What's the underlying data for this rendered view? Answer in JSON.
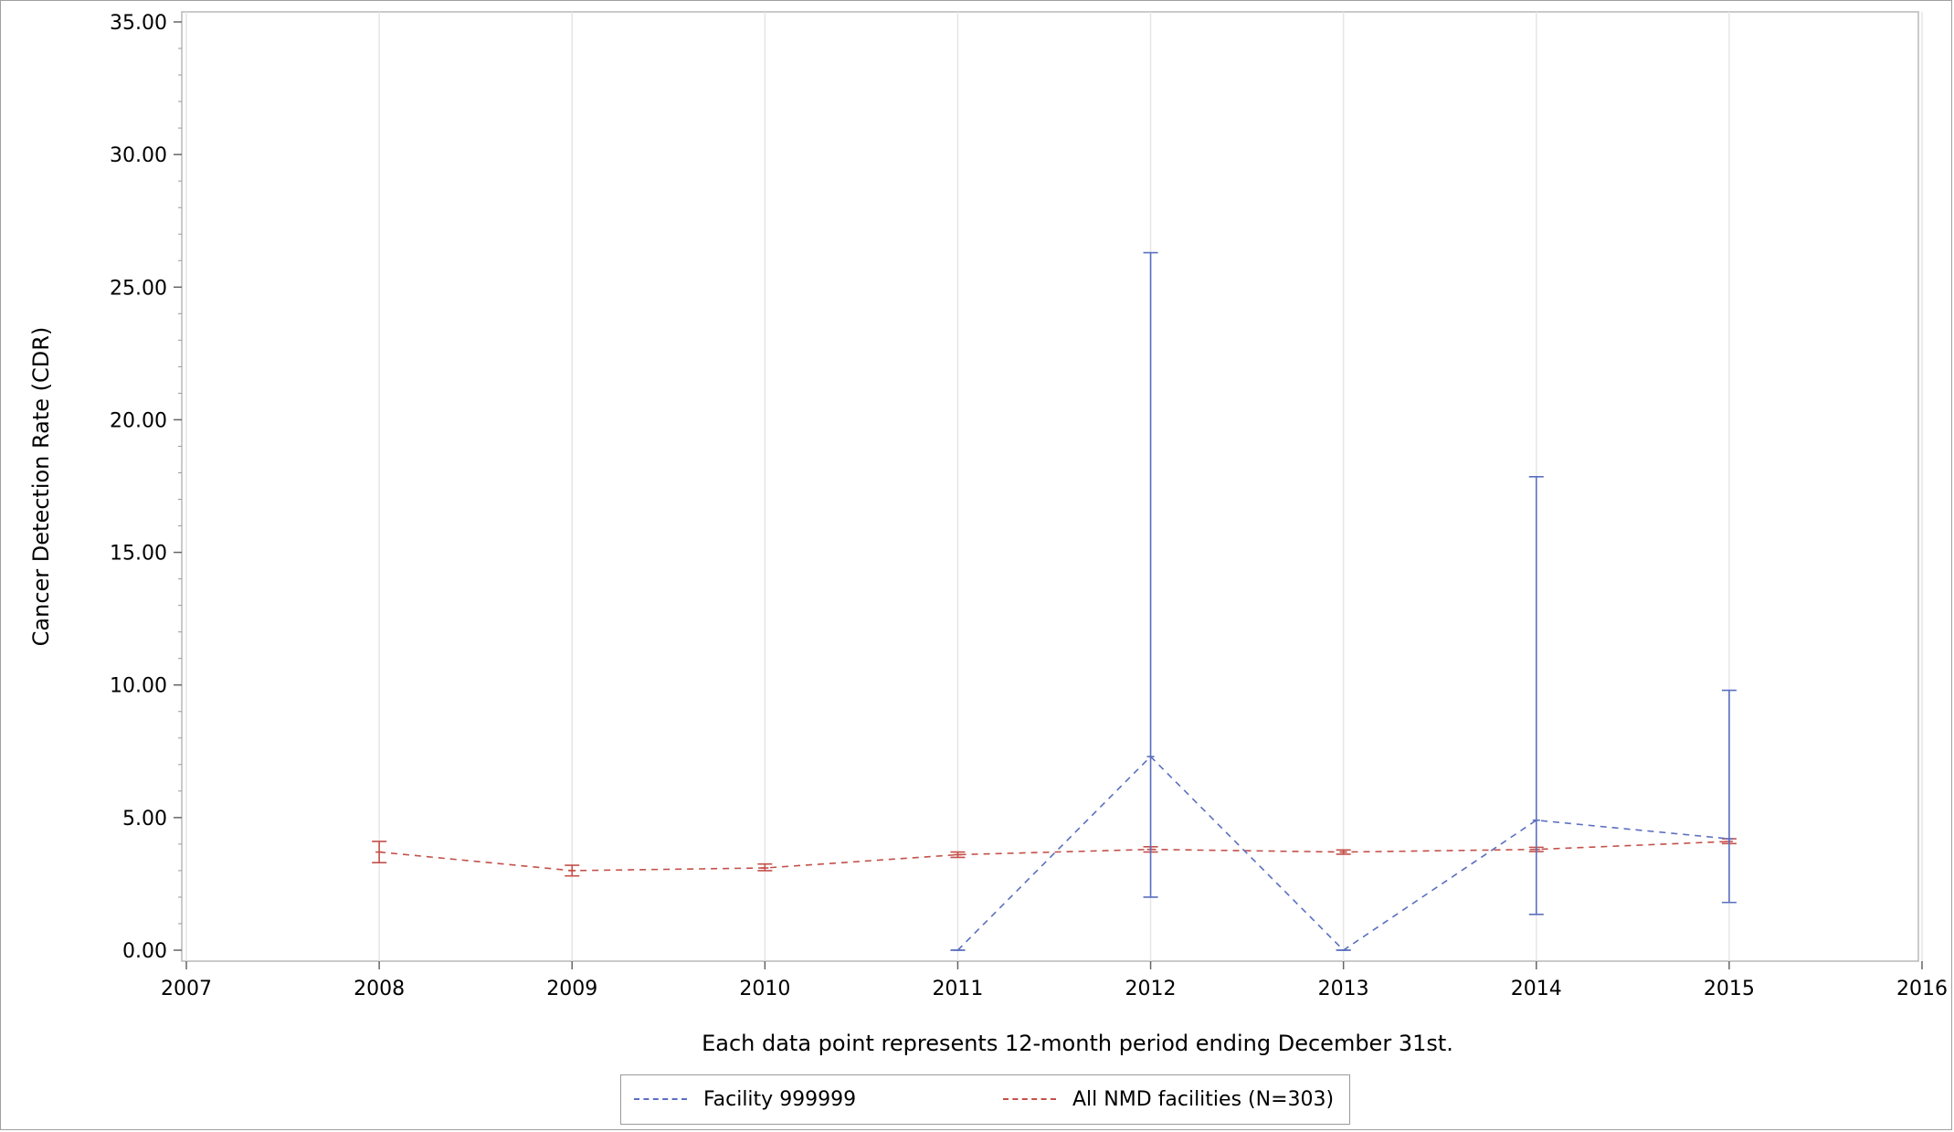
{
  "chart_data": {
    "type": "line",
    "title": "",
    "xlabel": "Each data point represents 12-month period ending December 31st.",
    "ylabel": "Cancer Detection Rate (CDR)",
    "xlim": [
      2007,
      2016
    ],
    "ylim": [
      0,
      35
    ],
    "x_ticks": [
      "2007",
      "2008",
      "2009",
      "2010",
      "2011",
      "2012",
      "2013",
      "2014",
      "2015",
      "2016"
    ],
    "y_ticks": [
      "0.00",
      "5.00",
      "10.00",
      "15.00",
      "20.00",
      "25.00",
      "30.00",
      "35.00"
    ],
    "grid": "vertical",
    "legend_position": "bottom",
    "series": [
      {
        "name": "Facility 999999",
        "color": "#5a6fbf",
        "line_style": "dashed",
        "points": [
          {
            "x": 2011,
            "y": 0.0,
            "lower": 0.0,
            "upper": 0.0
          },
          {
            "x": 2012,
            "y": 7.3,
            "lower": 2.0,
            "upper": 26.3
          },
          {
            "x": 2013,
            "y": 0.0,
            "lower": 0.0,
            "upper": 0.0
          },
          {
            "x": 2014,
            "y": 4.9,
            "lower": 1.35,
            "upper": 17.85
          },
          {
            "x": 2015,
            "y": 4.2,
            "lower": 1.8,
            "upper": 9.8
          }
        ]
      },
      {
        "name": "All NMD facilities (N=303)",
        "color": "#c4504a",
        "line_style": "dashed",
        "points": [
          {
            "x": 2008,
            "y": 3.7,
            "lower": 3.3,
            "upper": 4.1
          },
          {
            "x": 2009,
            "y": 3.0,
            "lower": 2.8,
            "upper": 3.2
          },
          {
            "x": 2010,
            "y": 3.1,
            "lower": 3.0,
            "upper": 3.25
          },
          {
            "x": 2011,
            "y": 3.6,
            "lower": 3.5,
            "upper": 3.7
          },
          {
            "x": 2012,
            "y": 3.8,
            "lower": 3.7,
            "upper": 3.9
          },
          {
            "x": 2013,
            "y": 3.7,
            "lower": 3.62,
            "upper": 3.78
          },
          {
            "x": 2014,
            "y": 3.8,
            "lower": 3.72,
            "upper": 3.88
          },
          {
            "x": 2015,
            "y": 4.1,
            "lower": 4.02,
            "upper": 4.2
          }
        ]
      }
    ]
  }
}
